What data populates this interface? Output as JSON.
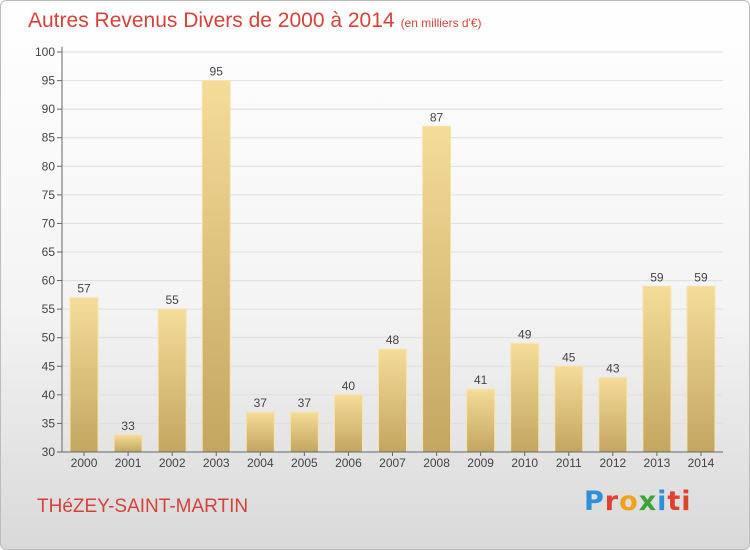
{
  "chart_data": {
    "type": "bar",
    "title": "Autres Revenus Divers de 2000 à 2014",
    "subtitle": "(en milliers d'€)",
    "categories": [
      "2000",
      "2001",
      "2002",
      "2003",
      "2004",
      "2005",
      "2006",
      "2007",
      "2008",
      "2009",
      "2010",
      "2011",
      "2012",
      "2013",
      "2014"
    ],
    "values": [
      57,
      33,
      55,
      95,
      37,
      37,
      40,
      48,
      87,
      41,
      49,
      45,
      43,
      59,
      59
    ],
    "ylim": [
      30,
      100
    ],
    "yticks": [
      30,
      35,
      40,
      45,
      50,
      55,
      60,
      65,
      70,
      75,
      80,
      85,
      90,
      95,
      100
    ],
    "grid": true,
    "bar_color": "#e8cc87",
    "title_color": "#d4433a"
  },
  "footer": {
    "place": "THéZEY-SAINT-MARTIN",
    "logo_letters": [
      "P",
      "r",
      "o",
      "x",
      "i",
      "ti"
    ]
  }
}
